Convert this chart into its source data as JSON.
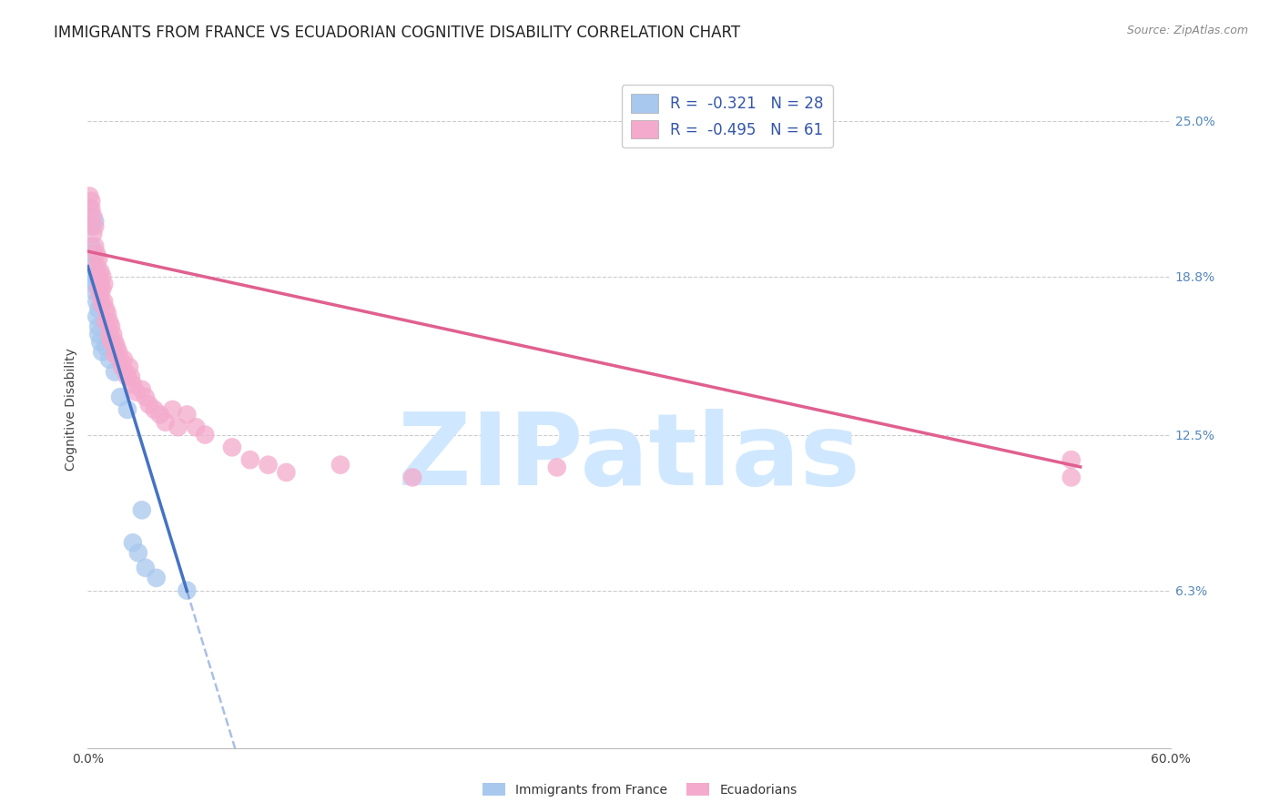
{
  "title": "IMMIGRANTS FROM FRANCE VS ECUADORIAN COGNITIVE DISABILITY CORRELATION CHART",
  "source": "Source: ZipAtlas.com",
  "ylabel": "Cognitive Disability",
  "ytick_labels": [
    "25.0%",
    "18.8%",
    "12.5%",
    "6.3%"
  ],
  "ytick_values": [
    0.25,
    0.188,
    0.125,
    0.063
  ],
  "xmin": 0.0,
  "xmax": 0.6,
  "ymin": 0.0,
  "ymax": 0.27,
  "legend_blue_r": "R =  -0.321",
  "legend_blue_n": "N = 28",
  "legend_pink_r": "R =  -0.495",
  "legend_pink_n": "N = 61",
  "blue_color": "#A8C8EE",
  "blue_line_color": "#4472C4",
  "pink_color": "#F4AACC",
  "pink_line_color": "#E06090",
  "blue_scatter": [
    [
      0.001,
      0.215
    ],
    [
      0.002,
      0.208
    ],
    [
      0.002,
      0.2
    ],
    [
      0.003,
      0.197
    ],
    [
      0.003,
      0.192
    ],
    [
      0.003,
      0.188
    ],
    [
      0.004,
      0.185
    ],
    [
      0.004,
      0.182
    ],
    [
      0.004,
      0.21
    ],
    [
      0.005,
      0.188
    ],
    [
      0.005,
      0.178
    ],
    [
      0.005,
      0.172
    ],
    [
      0.006,
      0.175
    ],
    [
      0.006,
      0.168
    ],
    [
      0.006,
      0.165
    ],
    [
      0.007,
      0.162
    ],
    [
      0.008,
      0.158
    ],
    [
      0.01,
      0.16
    ],
    [
      0.012,
      0.155
    ],
    [
      0.015,
      0.15
    ],
    [
      0.018,
      0.14
    ],
    [
      0.022,
      0.135
    ],
    [
      0.025,
      0.082
    ],
    [
      0.028,
      0.078
    ],
    [
      0.03,
      0.095
    ],
    [
      0.032,
      0.072
    ],
    [
      0.038,
      0.068
    ],
    [
      0.055,
      0.063
    ]
  ],
  "pink_scatter": [
    [
      0.001,
      0.22
    ],
    [
      0.002,
      0.218
    ],
    [
      0.002,
      0.215
    ],
    [
      0.003,
      0.212
    ],
    [
      0.003,
      0.205
    ],
    [
      0.004,
      0.208
    ],
    [
      0.004,
      0.2
    ],
    [
      0.005,
      0.197
    ],
    [
      0.005,
      0.192
    ],
    [
      0.006,
      0.195
    ],
    [
      0.006,
      0.188
    ],
    [
      0.006,
      0.183
    ],
    [
      0.007,
      0.19
    ],
    [
      0.007,
      0.185
    ],
    [
      0.007,
      0.18
    ],
    [
      0.008,
      0.188
    ],
    [
      0.008,
      0.183
    ],
    [
      0.008,
      0.177
    ],
    [
      0.009,
      0.185
    ],
    [
      0.009,
      0.178
    ],
    [
      0.01,
      0.175
    ],
    [
      0.01,
      0.17
    ],
    [
      0.011,
      0.173
    ],
    [
      0.012,
      0.17
    ],
    [
      0.012,
      0.165
    ],
    [
      0.013,
      0.168
    ],
    [
      0.013,
      0.162
    ],
    [
      0.014,
      0.165
    ],
    [
      0.015,
      0.162
    ],
    [
      0.015,
      0.157
    ],
    [
      0.016,
      0.16
    ],
    [
      0.017,
      0.158
    ],
    [
      0.018,
      0.155
    ],
    [
      0.019,
      0.152
    ],
    [
      0.02,
      0.155
    ],
    [
      0.021,
      0.15
    ],
    [
      0.022,
      0.148
    ],
    [
      0.023,
      0.152
    ],
    [
      0.024,
      0.148
    ],
    [
      0.025,
      0.145
    ],
    [
      0.027,
      0.142
    ],
    [
      0.03,
      0.143
    ],
    [
      0.032,
      0.14
    ],
    [
      0.034,
      0.137
    ],
    [
      0.037,
      0.135
    ],
    [
      0.04,
      0.133
    ],
    [
      0.043,
      0.13
    ],
    [
      0.047,
      0.135
    ],
    [
      0.05,
      0.128
    ],
    [
      0.055,
      0.133
    ],
    [
      0.06,
      0.128
    ],
    [
      0.065,
      0.125
    ],
    [
      0.08,
      0.12
    ],
    [
      0.09,
      0.115
    ],
    [
      0.1,
      0.113
    ],
    [
      0.11,
      0.11
    ],
    [
      0.14,
      0.113
    ],
    [
      0.18,
      0.108
    ],
    [
      0.26,
      0.112
    ],
    [
      0.545,
      0.108
    ],
    [
      0.545,
      0.115
    ]
  ],
  "blue_line_x_start": 0.0,
  "blue_line_x_solid_end": 0.055,
  "blue_line_x_dashed_end": 0.6,
  "blue_line_y_at_0": 0.192,
  "blue_line_slope": -2.35,
  "pink_line_x_start": 0.0,
  "pink_line_x_end": 0.55,
  "pink_line_y_at_0": 0.198,
  "pink_line_slope": -0.156,
  "title_fontsize": 12,
  "axis_label_fontsize": 10,
  "tick_fontsize": 10,
  "legend_fontsize": 12,
  "source_fontsize": 9,
  "watermark_text": "ZIPatlas",
  "watermark_color": "#D0E8FF",
  "background_color": "#FFFFFF",
  "grid_color": "#CCCCCC",
  "right_tick_color": "#5588BB"
}
